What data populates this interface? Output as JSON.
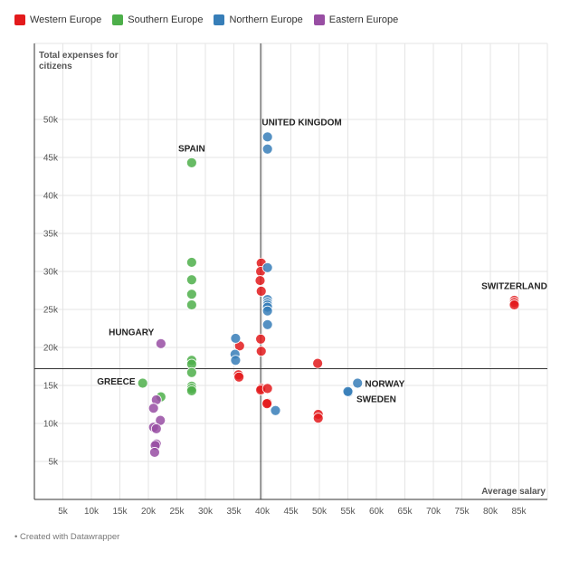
{
  "chart_data": {
    "type": "scatter",
    "title": "",
    "xlabel": "Average salary",
    "ylabel": "Total expenses for citizens",
    "xlim": [
      0,
      90000
    ],
    "ylim": [
      0,
      60000
    ],
    "x_ticks": [
      5000,
      10000,
      15000,
      20000,
      25000,
      30000,
      35000,
      40000,
      45000,
      50000,
      55000,
      60000,
      65000,
      70000,
      75000,
      80000,
      85000
    ],
    "x_tick_labels": [
      "5k",
      "10k",
      "15k",
      "20k",
      "25k",
      "30k",
      "35k",
      "40k",
      "45k",
      "50k",
      "55k",
      "60k",
      "65k",
      "70k",
      "75k",
      "80k",
      "85k"
    ],
    "y_ticks": [
      5000,
      10000,
      15000,
      20000,
      25000,
      30000,
      35000,
      40000,
      45000,
      50000
    ],
    "y_tick_labels": [
      "5k",
      "10k",
      "15k",
      "20k",
      "25k",
      "30k",
      "35k",
      "40k",
      "45k",
      "50k"
    ],
    "grid": true,
    "legend_position": "top-left",
    "reference_lines": {
      "x": 39700,
      "y": 17200
    },
    "series": [
      {
        "name": "Western Europe",
        "color": "#e31a1c",
        "points": [
          [
            36000,
            20200
          ],
          [
            35800,
            16400
          ],
          [
            35900,
            16100
          ],
          [
            39800,
            31100
          ],
          [
            39700,
            30000
          ],
          [
            39600,
            28800
          ],
          [
            39800,
            27400
          ],
          [
            39700,
            21100
          ],
          [
            39800,
            19500
          ],
          [
            39800,
            14600
          ],
          [
            39700,
            14400
          ],
          [
            40900,
            14600
          ],
          [
            40900,
            12700
          ],
          [
            40800,
            12600
          ],
          [
            49700,
            17900
          ],
          [
            49800,
            11200
          ],
          [
            49800,
            10700
          ],
          [
            84200,
            26200
          ],
          [
            84200,
            25900
          ],
          [
            84200,
            25600
          ]
        ]
      },
      {
        "name": "Southern Europe",
        "color": "#4daf4a",
        "points": [
          [
            27600,
            44300
          ],
          [
            27600,
            31200
          ],
          [
            27600,
            28900
          ],
          [
            27600,
            27000
          ],
          [
            27600,
            25600
          ],
          [
            27600,
            18300
          ],
          [
            27600,
            17800
          ],
          [
            27600,
            16700
          ],
          [
            27600,
            14900
          ],
          [
            27600,
            14600
          ],
          [
            27600,
            14300
          ],
          [
            19000,
            15300
          ],
          [
            22200,
            13500
          ]
        ]
      },
      {
        "name": "Northern Europe",
        "color": "#377eb8",
        "points": [
          [
            40900,
            47700
          ],
          [
            40900,
            46100
          ],
          [
            40900,
            30500
          ],
          [
            40900,
            26300
          ],
          [
            40900,
            25900
          ],
          [
            40900,
            25600
          ],
          [
            40900,
            25300
          ],
          [
            40900,
            24800
          ],
          [
            40900,
            23000
          ],
          [
            35300,
            21200
          ],
          [
            35200,
            19100
          ],
          [
            35300,
            18300
          ],
          [
            42300,
            11700
          ],
          [
            56700,
            15300
          ],
          [
            55100,
            14100
          ],
          [
            55000,
            14200
          ]
        ]
      },
      {
        "name": "Eastern Europe",
        "color": "#984ea3",
        "points": [
          [
            22200,
            20500
          ],
          [
            21400,
            13100
          ],
          [
            20900,
            12000
          ],
          [
            22100,
            10400
          ],
          [
            20900,
            9500
          ],
          [
            21400,
            9300
          ],
          [
            21400,
            7300
          ],
          [
            21200,
            7100
          ],
          [
            21100,
            6200
          ]
        ]
      }
    ],
    "annotations": [
      {
        "text": "UNITED KINGDOM",
        "x": 39900,
        "y": 49200,
        "anchor": "start"
      },
      {
        "text": "SPAIN",
        "x": 27600,
        "y": 45800,
        "anchor": "middle"
      },
      {
        "text": "SWITZERLAND",
        "x": 84200,
        "y": 27700,
        "anchor": "middle"
      },
      {
        "text": "HUNGARY",
        "x": 21000,
        "y": 21600,
        "anchor": "end"
      },
      {
        "text": "GREECE",
        "x": 17700,
        "y": 15100,
        "anchor": "end"
      },
      {
        "text": "NORWAY",
        "x": 58000,
        "y": 14800,
        "anchor": "start"
      },
      {
        "text": "SWEDEN",
        "x": 56500,
        "y": 12800,
        "anchor": "start"
      }
    ]
  },
  "legend": [
    {
      "label": "Western Europe",
      "color": "#e31a1c"
    },
    {
      "label": "Southern Europe",
      "color": "#4daf4a"
    },
    {
      "label": "Northern Europe",
      "color": "#377eb8"
    },
    {
      "label": "Eastern Europe",
      "color": "#984ea3"
    }
  ],
  "footer": {
    "credit": "• Created with Datawrapper"
  }
}
